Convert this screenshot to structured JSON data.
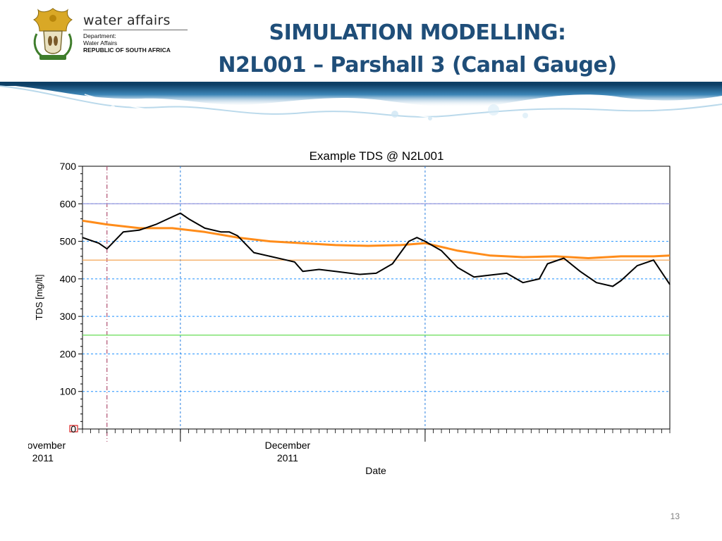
{
  "branding": {
    "name": "water affairs",
    "department_lines": [
      "Department:",
      "Water Affairs"
    ],
    "country": "REPUBLIC OF SOUTH AFRICA"
  },
  "slide": {
    "title_line1": "SIMULATION MODELLING:",
    "title_line2": "N2L001 – Parshall 3 (Canal Gauge)",
    "page_number": "13"
  },
  "colors": {
    "title": "#1f4e79",
    "tds_series": "#000000",
    "moving_average": "#ff8c1a",
    "upper_limit": "#f5a455",
    "lower_limit": "#66dd55",
    "grid_blue": "#1e90ff",
    "month_marker": "#2a7fe0",
    "start_marker": "#b05070"
  },
  "chart_data": {
    "type": "line",
    "title": "Example TDS @ N2L001",
    "xlabel": "Date",
    "ylabel": "TDS [mg/lt]",
    "ylim": [
      0,
      700
    ],
    "yticks": [
      "0",
      "100",
      "200",
      "300",
      "400",
      "500",
      "600",
      "700"
    ],
    "xlim": [
      "2011-10-20",
      "2011-12-31"
    ],
    "xtick_labels": [
      {
        "date": "2011-11-01",
        "line1": "November",
        "line2": "2011"
      },
      {
        "date": "2011-12-01",
        "line1": "December",
        "line2": "2011"
      }
    ],
    "grid": "dashed horizontal every 100; vertical at month starts",
    "reference_lines": [
      {
        "value": 450,
        "color": "#f5a455"
      },
      {
        "value": 250,
        "color": "#66dd55"
      },
      {
        "value": 600,
        "color": "#9999dd"
      }
    ],
    "series": [
      {
        "color": "#000000",
        "x": [
          "2011-10-20",
          "2011-10-22",
          "2011-10-23",
          "2011-10-25",
          "2011-10-27",
          "2011-10-29",
          "2011-10-31",
          "2011-11-01",
          "2011-11-02",
          "2011-11-04",
          "2011-11-06",
          "2011-11-07",
          "2011-11-08",
          "2011-11-10",
          "2011-11-12",
          "2011-11-14",
          "2011-11-15",
          "2011-11-16",
          "2011-11-18",
          "2011-11-20",
          "2011-11-23",
          "2011-11-25",
          "2011-11-27",
          "2011-11-29",
          "2011-11-30",
          "2011-12-01",
          "2011-12-03",
          "2011-12-05",
          "2011-12-07",
          "2011-12-09",
          "2011-12-11",
          "2011-12-13",
          "2011-12-15",
          "2011-12-16",
          "2011-12-18",
          "2011-12-20",
          "2011-12-22",
          "2011-12-24",
          "2011-12-25",
          "2011-12-27",
          "2011-12-29",
          "2011-12-31"
        ],
        "y": [
          510,
          495,
          480,
          525,
          530,
          545,
          565,
          575,
          560,
          535,
          525,
          525,
          515,
          470,
          460,
          450,
          445,
          420,
          425,
          420,
          412,
          415,
          440,
          500,
          510,
          500,
          475,
          430,
          405,
          410,
          415,
          390,
          400,
          440,
          455,
          420,
          390,
          380,
          395,
          435,
          450,
          385
        ]
      },
      {
        "color": "#ff8c1a",
        "x": [
          "2011-10-20",
          "2011-10-23",
          "2011-10-27",
          "2011-10-31",
          "2011-11-04",
          "2011-11-08",
          "2011-11-12",
          "2011-11-16",
          "2011-11-20",
          "2011-11-24",
          "2011-11-28",
          "2011-12-01",
          "2011-12-05",
          "2011-12-09",
          "2011-12-13",
          "2011-12-17",
          "2011-12-21",
          "2011-12-25",
          "2011-12-29",
          "2011-12-31"
        ],
        "y": [
          555,
          545,
          535,
          535,
          525,
          510,
          500,
          495,
          490,
          488,
          490,
          495,
          475,
          462,
          458,
          460,
          455,
          460,
          460,
          462
        ]
      }
    ],
    "start_marker": {
      "date": "2011-10-23",
      "value": 0
    }
  }
}
